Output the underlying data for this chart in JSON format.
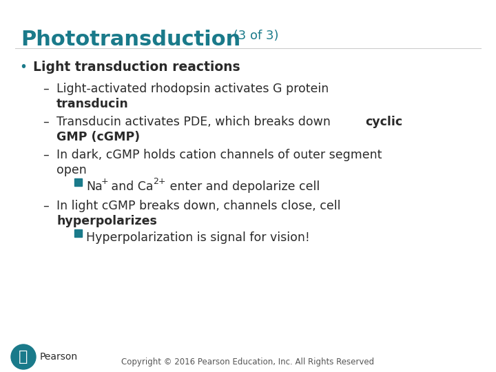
{
  "bg_color": "#ffffff",
  "title_main": "Phototransduction",
  "title_sub": " (3 of 3)",
  "title_color": "#1a7a8a",
  "title_fontsize": 22,
  "title_sub_fontsize": 13,
  "bullet_color": "#1a7a8a",
  "text_color": "#2a2a2a",
  "body_fontsize": 12.5,
  "bullet_fontsize": 13.5,
  "copyright": "Copyright © 2016 Pearson Education, Inc. All Rights Reserved",
  "copyright_fontsize": 8.5,
  "pearson_color": "#1a7a8a"
}
